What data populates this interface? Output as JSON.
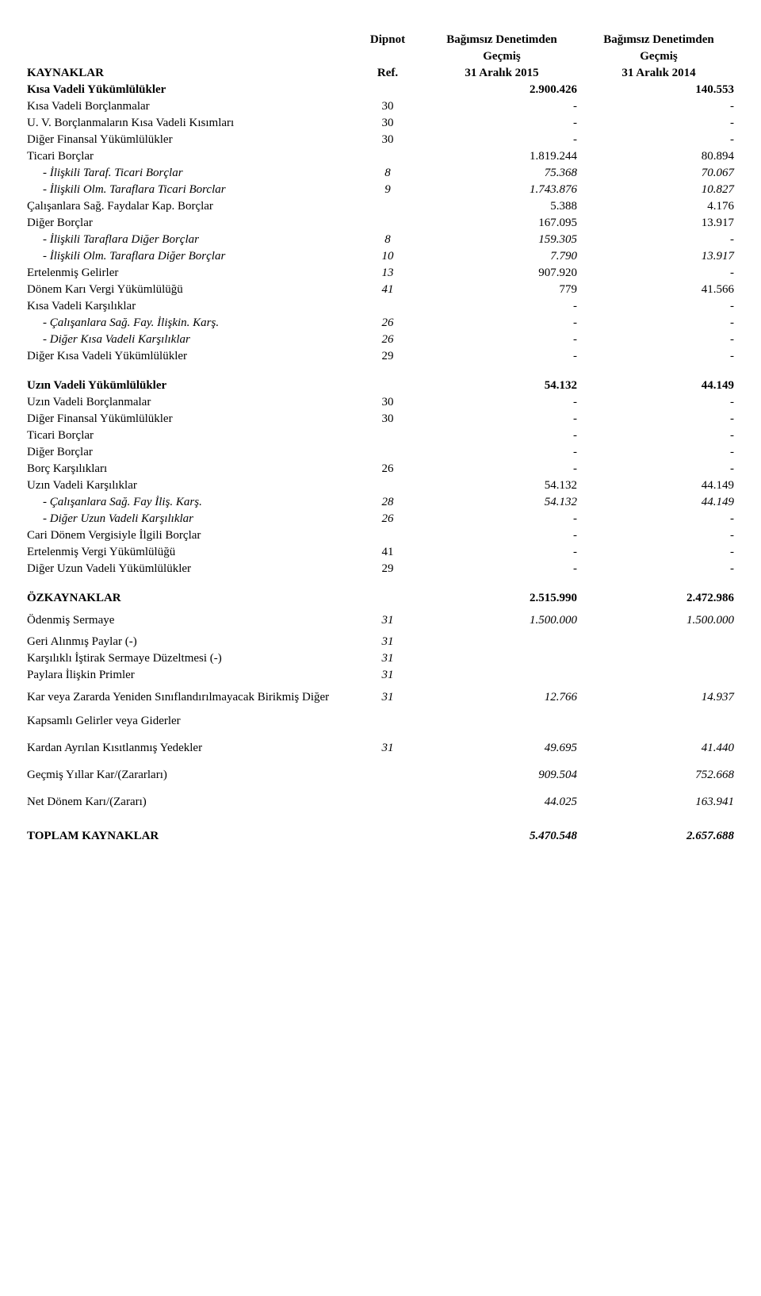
{
  "header": {
    "dipnot": "Dipnot",
    "ref": "Ref.",
    "col1_line1": "Bağımsız Denetimden",
    "col1_line2": "Geçmiş",
    "col1_line3": "31 Aralık 2015",
    "col2_line1": "Bağımsız Denetimden",
    "col2_line2": "Geçmiş",
    "col2_line3": "31 Aralık 2014",
    "kaynaklar": "KAYNAKLAR"
  },
  "sec1": {
    "title": "Kısa Vadeli Yükümlülükler",
    "v1": "2.900.426",
    "v2": "140.553",
    "rows": [
      {
        "label": "Kısa Vadeli Borçlanmalar",
        "ref": "30",
        "v1": "-",
        "v2": "-",
        "bold": false,
        "italic": false,
        "indent": 0
      },
      {
        "label": "U. V. Borçlanmaların Kısa Vadeli Kısımları",
        "ref": "30",
        "v1": "-",
        "v2": "-",
        "bold": false,
        "italic": false,
        "indent": 0
      },
      {
        "label": "Diğer Finansal Yükümlülükler",
        "ref": "30",
        "v1": "-",
        "v2": "-",
        "bold": false,
        "italic": false,
        "indent": 0
      },
      {
        "label": "Ticari Borçlar",
        "ref": "",
        "v1": "1.819.244",
        "v2": "80.894",
        "bold": false,
        "italic": false,
        "indent": 0
      },
      {
        "label": "İlişkili Taraf. Ticari Borçlar",
        "ref": "8",
        "v1": "75.368",
        "v2": "70.067",
        "bold": false,
        "italic": true,
        "indent": 1,
        "dash": true
      },
      {
        "label": "İlişkili Olm. Taraflara Ticari Borclar",
        "ref": "9",
        "v1": "1.743.876",
        "v2": "10.827",
        "bold": false,
        "italic": true,
        "indent": 1,
        "dash": true
      },
      {
        "label": "Çalışanlara Sağ. Faydalar Kap. Borçlar",
        "ref": "",
        "v1": "5.388",
        "v2": "4.176",
        "bold": false,
        "italic": false,
        "indent": 0
      },
      {
        "label": "Diğer Borçlar",
        "ref": "",
        "v1": "167.095",
        "v2": "13.917",
        "bold": false,
        "italic": false,
        "indent": 0
      },
      {
        "label": "İlişkili Taraflara Diğer Borçlar",
        "ref": "8",
        "v1": "159.305",
        "v2": "-",
        "bold": false,
        "italic": true,
        "indent": 1,
        "dash": true
      },
      {
        "label": "İlişkili Olm. Taraflara Diğer Borçlar",
        "ref": "10",
        "v1": "7.790",
        "v2": "13.917",
        "bold": false,
        "italic": true,
        "indent": 1,
        "dash": true
      },
      {
        "label": "Ertelenmiş Gelirler",
        "ref": "13",
        "v1": "907.920",
        "v2": "-",
        "bold": false,
        "italic": false,
        "indent": 0,
        "refItalic": true
      },
      {
        "label": "Dönem Karı Vergi Yükümlülüğü",
        "ref": "41",
        "v1": "779",
        "v2": "41.566",
        "bold": false,
        "italic": false,
        "indent": 0,
        "refItalic": true
      },
      {
        "label": "Kısa Vadeli Karşılıklar",
        "ref": "",
        "v1": "-",
        "v2": "-",
        "bold": false,
        "italic": false,
        "indent": 0
      },
      {
        "label": "Çalışanlara Sağ. Fay. İlişkin. Karş.",
        "ref": "26",
        "v1": "-",
        "v2": "-",
        "bold": false,
        "italic": true,
        "indent": 1,
        "dash": true
      },
      {
        "label": "Diğer Kısa Vadeli Karşılıklar",
        "ref": "26",
        "v1": "-",
        "v2": "-",
        "bold": false,
        "italic": true,
        "indent": 1,
        "dash": true
      },
      {
        "label": "Diğer Kısa Vadeli Yükümlülükler",
        "ref": "29",
        "v1": "-",
        "v2": "-",
        "bold": false,
        "italic": false,
        "indent": 0
      }
    ]
  },
  "sec2": {
    "title": "Uzın Vadeli Yükümlülükler",
    "v1": "54.132",
    "v2": "44.149",
    "rows": [
      {
        "label": "Uzın Vadeli Borçlanmalar",
        "ref": "30",
        "v1": "-",
        "v2": "-",
        "bold": false,
        "italic": false,
        "indent": 0
      },
      {
        "label": "Diğer Finansal Yükümlülükler",
        "ref": "30",
        "v1": "-",
        "v2": "-",
        "bold": false,
        "italic": false,
        "indent": 0
      },
      {
        "label": "Ticari Borçlar",
        "ref": "",
        "v1": "-",
        "v2": "-",
        "bold": false,
        "italic": false,
        "indent": 0
      },
      {
        "label": "Diğer Borçlar",
        "ref": "",
        "v1": "-",
        "v2": "-",
        "bold": false,
        "italic": false,
        "indent": 0
      },
      {
        "label": "Borç Karşılıkları",
        "ref": "26",
        "v1": "-",
        "v2": "-",
        "bold": false,
        "italic": false,
        "indent": 0
      },
      {
        "label": "Uzın Vadeli Karşılıklar",
        "ref": "",
        "v1": "54.132",
        "v2": "44.149",
        "bold": false,
        "italic": false,
        "indent": 0
      },
      {
        "label": "Çalışanlara Sağ. Fay İliş.  Karş.",
        "ref": "28",
        "v1": "54.132",
        "v2": "44.149",
        "bold": false,
        "italic": true,
        "indent": 1,
        "dash": true
      },
      {
        "label": "Diğer Uzun Vadeli Karşılıklar",
        "ref": "26",
        "v1": "-",
        "v2": "-",
        "bold": false,
        "italic": true,
        "indent": 1,
        "dash": true
      },
      {
        "label": "Cari Dönem Vergisiyle İlgili Borçlar",
        "ref": "",
        "v1": "-",
        "v2": "-",
        "bold": false,
        "italic": false,
        "indent": 0
      },
      {
        "label": "Ertelenmiş Vergi Yükümlülüğü",
        "ref": "41",
        "v1": "-",
        "v2": "-",
        "bold": false,
        "italic": false,
        "indent": 0
      },
      {
        "label": "Diğer Uzun Vadeli Yükümlülükler",
        "ref": "29",
        "v1": "-",
        "v2": "-",
        "bold": false,
        "italic": false,
        "indent": 0
      }
    ]
  },
  "sec3": {
    "title": "ÖZKAYNAKLAR",
    "v1": "2.515.990",
    "v2": "2.472.986",
    "rows": [
      {
        "label": "Ödenmiş Sermaye",
        "ref": "31",
        "v1": "1.500.000",
        "v2": "1.500.000",
        "bold": false,
        "italic": false,
        "indent": 0,
        "refItalic": true,
        "valItalic": true,
        "spaced": true
      },
      {
        "label": "Geri Alınmış Paylar (-)",
        "ref": "31",
        "v1": "",
        "v2": "",
        "bold": false,
        "italic": false,
        "indent": 0,
        "refItalic": true
      },
      {
        "label": "Karşılıklı İştirak Sermaye Düzeltmesi (-)",
        "ref": "31",
        "v1": "",
        "v2": "",
        "bold": false,
        "italic": false,
        "indent": 0,
        "refItalic": true
      },
      {
        "label": "Paylara İlişkin Primler",
        "ref": "31",
        "v1": "",
        "v2": "",
        "bold": false,
        "italic": false,
        "indent": 0,
        "refItalic": true
      },
      {
        "label": "Kar veya Zararda Yeniden Sınıflandırılmayacak Birikmiş Diğer Kapsamlı Gelirler veya Giderler",
        "ref": "31",
        "v1": "12.766",
        "v2": "14.937",
        "bold": false,
        "italic": false,
        "indent": 0,
        "refItalic": true,
        "valItalic": true,
        "spaced": true
      },
      {
        "label": "Kardan Ayrılan Kısıtlanmış Yedekler",
        "ref": "31",
        "v1": "49.695",
        "v2": "41.440",
        "bold": false,
        "italic": false,
        "indent": 0,
        "refItalic": true,
        "valItalic": true,
        "spaced": true
      },
      {
        "label": "Geçmiş Yıllar Kar/(Zararları)",
        "ref": "",
        "v1": "909.504",
        "v2": "752.668",
        "bold": false,
        "italic": false,
        "indent": 0,
        "valItalic": true,
        "spaced": true
      },
      {
        "label": "Net Dönem Karı/(Zararı)",
        "ref": "",
        "v1": "44.025",
        "v2": "163.941",
        "bold": false,
        "italic": false,
        "indent": 0,
        "valItalic": true,
        "spaced": true
      }
    ]
  },
  "total": {
    "label": "TOPLAM KAYNAKLAR",
    "v1": "5.470.548",
    "v2": "2.657.688"
  }
}
